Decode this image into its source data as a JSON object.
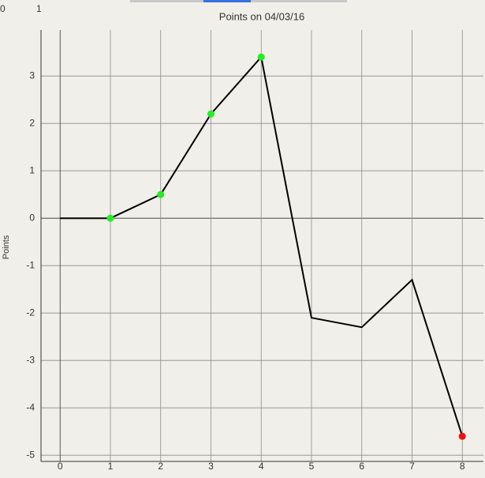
{
  "header_fragments": [
    "0",
    "1"
  ],
  "chart_data": {
    "type": "line",
    "title": "Points on 04/03/16",
    "y_label": "Points",
    "x": [
      0,
      1,
      2,
      3,
      4,
      5,
      6,
      7,
      8
    ],
    "series": [
      {
        "color": "#000000",
        "values": [
          0,
          0,
          0.5,
          2.2,
          3.4,
          -2.1,
          -2.3,
          -1.3,
          -4.6
        ],
        "marker_colors": [
          null,
          "#22ee22",
          "#22ee22",
          "#22ee22",
          "#22ee22",
          null,
          null,
          null,
          "#ee1111"
        ]
      }
    ],
    "xlim": [
      -0.38,
      8.42
    ],
    "ylim": [
      -5.13,
      3.97
    ],
    "xticks": [
      0,
      1,
      2,
      3,
      4,
      5,
      6,
      7,
      8
    ],
    "yticks": [
      3,
      2,
      1,
      0,
      -1,
      -2,
      -3,
      -4,
      -5
    ],
    "grid": true
  }
}
